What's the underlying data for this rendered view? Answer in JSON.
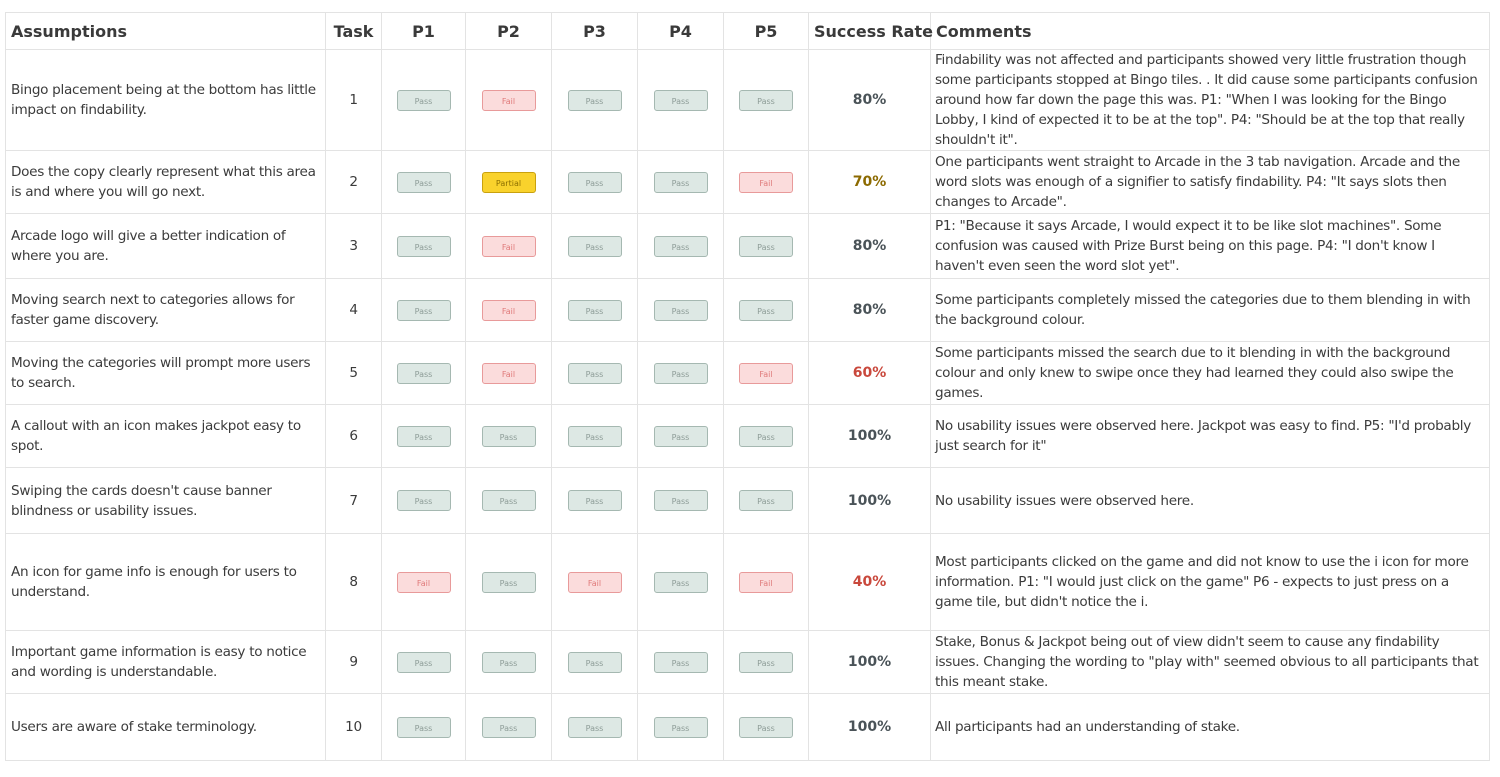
{
  "headers": {
    "assumptions": "Assumptions",
    "task": "Task",
    "p1": "P1",
    "p2": "P2",
    "p3": "P3",
    "p4": "P4",
    "p5": "P5",
    "success_rate": "Success Rate",
    "comments": "Comments"
  },
  "status_colors": {
    "pass": "#dde8e4",
    "fail": "#fbdcdc",
    "partial": "#f9d22c"
  },
  "rows": [
    {
      "assumption": "Bingo placement being at the bottom has little impact on findability.",
      "task": "1",
      "results": [
        {
          "label": "Pass",
          "status": "pass"
        },
        {
          "label": "Fail",
          "status": "fail"
        },
        {
          "label": "Pass",
          "status": "pass"
        },
        {
          "label": "Pass",
          "status": "pass"
        },
        {
          "label": "Pass",
          "status": "pass"
        }
      ],
      "success_rate": "80%",
      "comment": "Findability was not affected and participants showed very little frustration though some participants stopped at Bingo tiles. . It did cause some participants confusion around how far down the page this was. P1: \"When I was looking for the Bingo Lobby, I kind of expected it to be at the top\". P4: \"Should be at the top that really shouldn't it\"."
    },
    {
      "assumption": "Does the copy clearly represent what this area is and where you will go next.",
      "task": "2",
      "results": [
        {
          "label": "Pass",
          "status": "pass"
        },
        {
          "label": "Partial",
          "status": "partial"
        },
        {
          "label": "Pass",
          "status": "pass"
        },
        {
          "label": "Pass",
          "status": "pass"
        },
        {
          "label": "Fail",
          "status": "fail"
        }
      ],
      "success_rate": "70%",
      "comment": "One participants went straight to Arcade in the 3 tab navigation. Arcade and the word slots was enough of a signifier to satisfy findability. P4: \"It says slots then changes to Arcade\"."
    },
    {
      "assumption": "Arcade logo will give a better indication of where you are.",
      "task": "3",
      "results": [
        {
          "label": "Pass",
          "status": "pass"
        },
        {
          "label": "Fail",
          "status": "fail"
        },
        {
          "label": "Pass",
          "status": "pass"
        },
        {
          "label": "Pass",
          "status": "pass"
        },
        {
          "label": "Pass",
          "status": "pass"
        }
      ],
      "success_rate": "80%",
      "comment": "P1: \"Because it says Arcade, I would expect it to be like slot machines\". Some confusion was caused with Prize Burst being on this page. P4: \"I don't know I haven't even seen the word slot yet\"."
    },
    {
      "assumption": "Moving search next to categories allows for faster game discovery.",
      "task": "4",
      "results": [
        {
          "label": "Pass",
          "status": "pass"
        },
        {
          "label": "Fail",
          "status": "fail"
        },
        {
          "label": "Pass",
          "status": "pass"
        },
        {
          "label": "Pass",
          "status": "pass"
        },
        {
          "label": "Pass",
          "status": "pass"
        }
      ],
      "success_rate": "80%",
      "comment": "Some participants completely missed the categories due to them blending in with the background colour."
    },
    {
      "assumption": "Moving the categories will prompt more users to search.",
      "task": "5",
      "results": [
        {
          "label": "Pass",
          "status": "pass"
        },
        {
          "label": "Fail",
          "status": "fail"
        },
        {
          "label": "Pass",
          "status": "pass"
        },
        {
          "label": "Pass",
          "status": "pass"
        },
        {
          "label": "Fail",
          "status": "fail"
        }
      ],
      "success_rate": "60%",
      "comment": "Some participants missed the search due to it blending in with the background colour and only knew to swipe once they had learned they could also swipe the games."
    },
    {
      "assumption": "A callout with an icon makes jackpot easy to spot.",
      "task": "6",
      "results": [
        {
          "label": "Pass",
          "status": "pass"
        },
        {
          "label": "Pass",
          "status": "pass"
        },
        {
          "label": "Pass",
          "status": "pass"
        },
        {
          "label": "Pass",
          "status": "pass"
        },
        {
          "label": "Pass",
          "status": "pass"
        }
      ],
      "success_rate": "100%",
      "comment": "No usability issues were observed here. Jackpot was easy to find. P5: \"I'd probably just search for it\""
    },
    {
      "assumption": "Swiping the cards doesn't cause banner blindness or usability issues.",
      "task": "7",
      "results": [
        {
          "label": "Pass",
          "status": "pass"
        },
        {
          "label": "Pass",
          "status": "pass"
        },
        {
          "label": "Pass",
          "status": "pass"
        },
        {
          "label": "Pass",
          "status": "pass"
        },
        {
          "label": "Pass",
          "status": "pass"
        }
      ],
      "success_rate": "100%",
      "comment": "No usability issues were observed here."
    },
    {
      "assumption": "An icon for game info is enough for users to understand.",
      "task": "8",
      "results": [
        {
          "label": "Fail",
          "status": "fail"
        },
        {
          "label": "Pass",
          "status": "pass"
        },
        {
          "label": "Fail",
          "status": "fail"
        },
        {
          "label": "Pass",
          "status": "pass"
        },
        {
          "label": "Fail",
          "status": "fail"
        }
      ],
      "success_rate": "40%",
      "comment": "Most participants clicked on the game and did not know to use the i icon for more information. P1: \"I would just click on the game\" P6 - expects to just press on a game tile, but didn't notice the i."
    },
    {
      "assumption": "Important game information is easy to notice and wording is understandable.",
      "task": "9",
      "results": [
        {
          "label": "Pass",
          "status": "pass"
        },
        {
          "label": "Pass",
          "status": "pass"
        },
        {
          "label": "Pass",
          "status": "pass"
        },
        {
          "label": "Pass",
          "status": "pass"
        },
        {
          "label": "Pass",
          "status": "pass"
        }
      ],
      "success_rate": "100%",
      "comment": "Stake, Bonus & Jackpot being out of view didn't seem to cause any findability issues. Changing the wording to \"play with\" seemed obvious to all participants that this meant stake."
    },
    {
      "assumption": "Users are aware of stake terminology.",
      "task": "10",
      "results": [
        {
          "label": "Pass",
          "status": "pass"
        },
        {
          "label": "Pass",
          "status": "pass"
        },
        {
          "label": "Pass",
          "status": "pass"
        },
        {
          "label": "Pass",
          "status": "pass"
        },
        {
          "label": "Pass",
          "status": "pass"
        }
      ],
      "success_rate": "100%",
      "comment": "All participants had an understanding of stake."
    }
  ]
}
